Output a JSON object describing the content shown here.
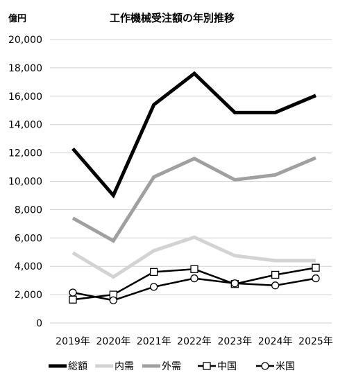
{
  "chart_data": {
    "type": "line",
    "title": "工作機械受注額の年別推移",
    "ylabel": "億円",
    "xlabel": "",
    "categories": [
      "2019年",
      "2020年",
      "2021年",
      "2022年",
      "2023年",
      "2024年",
      "2025年"
    ],
    "y_ticks": [
      "0",
      "2,000",
      "4,000",
      "6,000",
      "8,000",
      "10,000",
      "12,000",
      "14,000",
      "16,000",
      "18,000",
      "20,000"
    ],
    "ylim": [
      0,
      20000
    ],
    "grid": "horizontal",
    "legend_position": "bottom",
    "series": [
      {
        "name": "総額",
        "color": "#000000",
        "marker": "none",
        "values": [
          12300,
          9000,
          15400,
          17600,
          14850,
          14850,
          16050
        ]
      },
      {
        "name": "内需",
        "color": "#d3d3d3",
        "marker": "none",
        "values": [
          4950,
          3250,
          5100,
          6050,
          4750,
          4400,
          4400
        ]
      },
      {
        "name": "外需",
        "color": "#a0a0a0",
        "marker": "none",
        "values": [
          7400,
          5800,
          10300,
          11600,
          10100,
          10450,
          11650
        ]
      },
      {
        "name": "中国",
        "color": "#000000",
        "marker": "square",
        "values": [
          1650,
          2000,
          3600,
          3800,
          2750,
          3400,
          3900
        ]
      },
      {
        "name": "米国",
        "color": "#000000",
        "marker": "circle",
        "values": [
          2150,
          1600,
          2550,
          3150,
          2800,
          2650,
          3150
        ]
      }
    ]
  }
}
